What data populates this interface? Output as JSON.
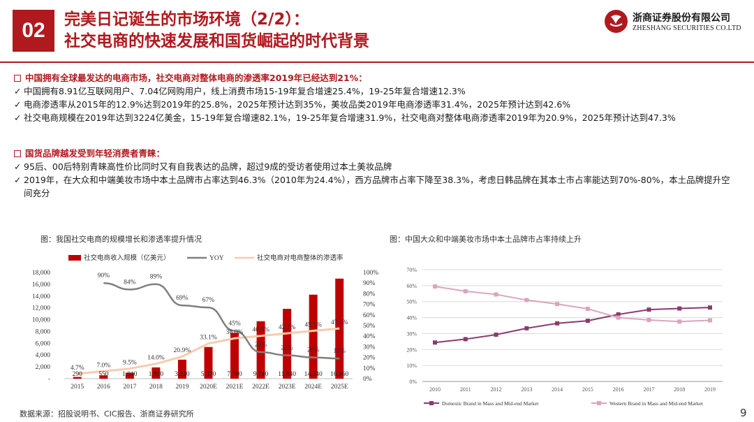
{
  "header": {
    "section_number": "02",
    "title_line1": "完美日记诞生的市场环境（2/2）：",
    "title_line2": "社交电商的快速发展和国货崛起的时代背景",
    "logo_cn": "浙商证券股份有限公司",
    "logo_en": "ZHESHANG SECURITIES CO.LTD"
  },
  "section1": {
    "heading": "中国拥有全球最发达的电商市场，社交电商对整体电商的渗透率2019年已经达到21%：",
    "bullets": [
      "中国拥有8.91亿互联网用户、7.04亿网购用户，线上消费市场15-19年复合增速25.4%，19-25年复合增速12.3%",
      "电商渗透率从2015年的12.9%达到2019年的25.8%，2025年预计达到35%，美妆品类2019年电商渗透率31.4%，2025年预计达到42.6%",
      "社交电商规模在2019年达到3224亿美金，15-19年复合增速82.1%，19-25年复合增速31.9%，社交电商对整体电商渗透率2019年为20.9%，2025年预计达到47.3%"
    ]
  },
  "section2": {
    "heading": "国货品牌越发受到年轻消费者青睐：",
    "bullets": [
      "95后、00后特别青睐高性价比同时又有自我表达的品牌，超过9成的受访者使用过本土美妆品牌",
      "2019年，在大众和中端美妆市场中本土品牌市占率达到46.3%（2010年为24.4%），西方品牌市占率下降至38.3%，考虑日韩品牌在其本土市占率能达到70%-80%，本土品牌提升空间充分"
    ]
  },
  "check_mark": "✓",
  "chart_data": [
    {
      "type": "bar",
      "caption": "图：我国社交电商的规模增长和渗透率提升情况",
      "categories": [
        "2015",
        "2016",
        "2017",
        "2018",
        "2019",
        "2020E",
        "2021E",
        "2022E",
        "2023E",
        "2024E",
        "2025E"
      ],
      "legend": [
        "社交电商收入规模（亿美元）",
        "YOY",
        "社交电商对电商整体的渗透率"
      ],
      "bar_values": [
        290,
        550,
        1010,
        1910,
        3220,
        5370,
        7780,
        9740,
        11840,
        14240,
        16960
      ],
      "bar_labels": [
        "290",
        "550",
        "1,010",
        "1,910",
        "3,220",
        "5,370",
        "7,780",
        "9,740",
        "11,840",
        "14,240",
        "16,960"
      ],
      "yoy": [
        null,
        90,
        84,
        89,
        69,
        67,
        45,
        25,
        22,
        20,
        19
      ],
      "yoy_labels": [
        "",
        "90%",
        "84%",
        "89%",
        "69%",
        "67%",
        "45%",
        "25%",
        "22%",
        "20%",
        "19%"
      ],
      "penetration": [
        4.7,
        7.0,
        9.5,
        14.0,
        20.9,
        33.1,
        38.0,
        40.3,
        42.7,
        45.1,
        47.3
      ],
      "pen_labels": [
        "4.7%",
        "7.0%",
        "9.5%",
        "14.0%",
        "20.9%",
        "33.1%",
        "38.0%",
        "40.3%",
        "42.7%",
        "45.1%",
        "47.3%"
      ],
      "y_left_ticks": [
        "-",
        "2,000",
        "4,000",
        "6,000",
        "8,000",
        "10,000",
        "12,000",
        "14,000",
        "16,000",
        "18,000"
      ],
      "y_right_ticks": [
        "0%",
        "10%",
        "20%",
        "30%",
        "40%",
        "50%",
        "60%",
        "70%",
        "80%",
        "90%",
        "100%"
      ],
      "ylim_left": [
        0,
        18000
      ],
      "ylim_right": [
        0,
        100
      ],
      "colors": {
        "bar": "#c00000",
        "yoy": "#7f7f7f",
        "penetration": "#f8cbad"
      }
    },
    {
      "type": "line",
      "caption": "图：中国大众和中端美妆市场中本土品牌市占率持续上升",
      "x": [
        "2010",
        "2011",
        "2012",
        "2013",
        "2014",
        "2015",
        "2016",
        "2017",
        "2018",
        "2019"
      ],
      "series": [
        {
          "name": "Domestic Brand in Mass and Mid-end Market",
          "values": [
            24.4,
            26.5,
            29.3,
            33.3,
            36.4,
            38.0,
            42.0,
            45.0,
            45.7,
            46.3
          ],
          "color": "#8b3a6e"
        },
        {
          "name": "Western Brand in Mass and Mid-end Market",
          "values": [
            59.5,
            56.5,
            54.5,
            51.0,
            48.5,
            45.5,
            40.0,
            38.5,
            37.5,
            38.3
          ],
          "color": "#d8a6be"
        }
      ],
      "y_ticks": [
        "0%",
        "10%",
        "20%",
        "30%",
        "40%",
        "50%",
        "60%",
        "70%"
      ],
      "ylim": [
        0,
        70
      ],
      "grid": true,
      "legend_position": "bottom"
    }
  ],
  "footer": {
    "source": "数据来源：招股说明书、CIC报告、浙商证券研究所",
    "page_number": "9"
  }
}
